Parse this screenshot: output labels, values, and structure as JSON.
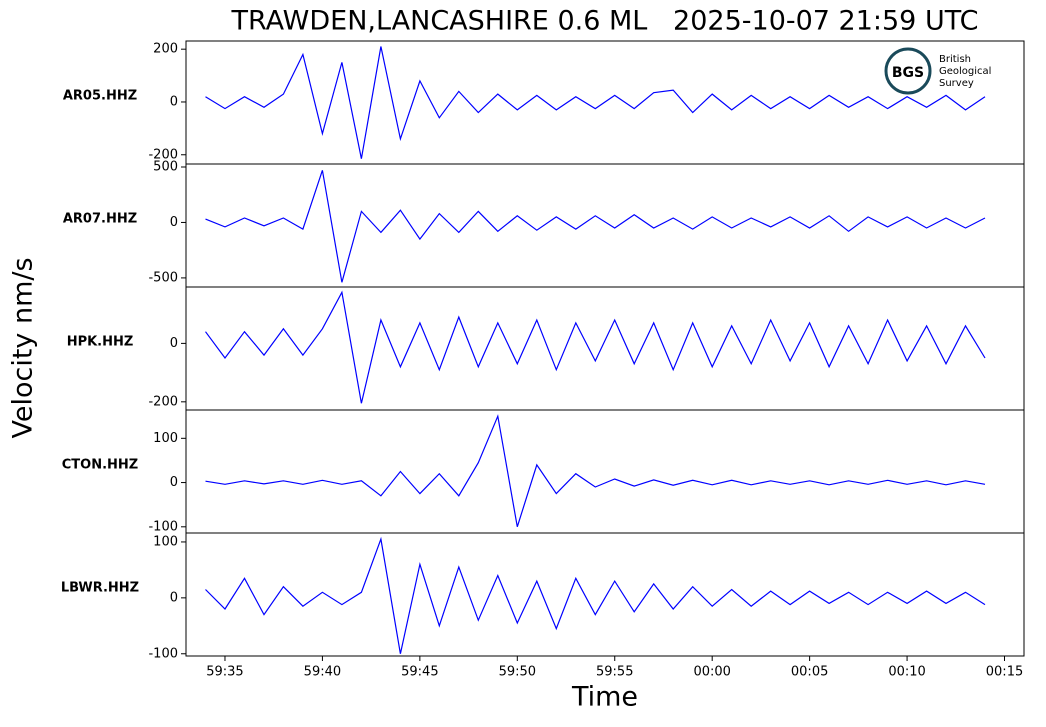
{
  "chart_data": {
    "type": "line",
    "title": "TRAWDEN,LANCASHIRE 0.6 ML   2025-10-07 21:59 UTC",
    "xlabel": "Time",
    "ylabel": "Velocity nm/s",
    "color": "#0000ff",
    "x": [
      "59:34",
      "59:35",
      "59:36",
      "59:37",
      "59:38",
      "59:39",
      "59:40",
      "59:41",
      "59:42",
      "59:43",
      "59:44",
      "59:45",
      "59:46",
      "59:47",
      "59:48",
      "59:49",
      "59:50",
      "59:51",
      "59:52",
      "59:53",
      "59:54",
      "59:55",
      "59:56",
      "59:57",
      "59:58",
      "59:59",
      "00:00",
      "00:01",
      "00:02",
      "00:03",
      "00:04",
      "00:05",
      "00:06",
      "00:07",
      "00:08",
      "00:09",
      "00:10",
      "00:11",
      "00:12",
      "00:13",
      "00:14"
    ],
    "xlim": [
      "59:33",
      "00:16"
    ],
    "xticks": [
      "59:35",
      "59:40",
      "59:45",
      "59:50",
      "59:55",
      "00:00",
      "00:05",
      "00:10",
      "00:15"
    ],
    "series": [
      {
        "name": "AR05.HHZ",
        "ylim": [
          -235,
          231
        ],
        "yticks": [
          -200,
          0,
          200
        ],
        "values": [
          20,
          -25,
          20,
          -20,
          30,
          180,
          -120,
          150,
          -215,
          210,
          -140,
          80,
          -60,
          40,
          -40,
          30,
          -30,
          25,
          -30,
          20,
          -25,
          25,
          -25,
          35,
          45,
          -40,
          30,
          -30,
          25,
          -25,
          20,
          -25,
          25,
          -20,
          20,
          -25,
          20,
          -20,
          25,
          -30,
          20
        ]
      },
      {
        "name": "AR07.HHZ",
        "ylim": [
          -582,
          527
        ],
        "yticks": [
          -500,
          0,
          500
        ],
        "values": [
          30,
          -40,
          40,
          -30,
          40,
          -60,
          470,
          -540,
          100,
          -90,
          110,
          -150,
          80,
          -90,
          100,
          -80,
          60,
          -70,
          50,
          -60,
          60,
          -50,
          70,
          -50,
          40,
          -60,
          50,
          -50,
          40,
          -40,
          50,
          -50,
          60,
          -80,
          50,
          -40,
          50,
          -50,
          40,
          -50,
          40
        ]
      },
      {
        "name": "HPK.HHZ",
        "ylim": [
          -228,
          193
        ],
        "yticks": [
          -200,
          0
        ],
        "values": [
          40,
          -50,
          40,
          -40,
          50,
          -40,
          50,
          175,
          -205,
          80,
          -80,
          70,
          -90,
          90,
          -80,
          70,
          -70,
          80,
          -90,
          70,
          -60,
          80,
          -70,
          70,
          -90,
          70,
          -80,
          60,
          -70,
          80,
          -60,
          70,
          -80,
          60,
          -70,
          80,
          -60,
          60,
          -70,
          60,
          -50
        ]
      },
      {
        "name": "CTON.HHZ",
        "ylim": [
          -114,
          164
        ],
        "yticks": [
          -100,
          0,
          100
        ],
        "values": [
          3,
          -4,
          4,
          -3,
          4,
          -4,
          5,
          -4,
          4,
          -30,
          25,
          -25,
          20,
          -30,
          45,
          150,
          -100,
          40,
          -25,
          20,
          -10,
          8,
          -8,
          6,
          -6,
          5,
          -5,
          5,
          -5,
          4,
          -4,
          4,
          -5,
          4,
          -4,
          5,
          -4,
          4,
          -5,
          4,
          -4
        ]
      },
      {
        "name": "LBWR.HHZ",
        "ylim": [
          -104,
          116
        ],
        "yticks": [
          -100,
          0,
          100
        ],
        "values": [
          15,
          -20,
          35,
          -30,
          20,
          -15,
          10,
          -12,
          10,
          105,
          -100,
          60,
          -50,
          55,
          -40,
          40,
          -45,
          30,
          -55,
          35,
          -30,
          30,
          -25,
          25,
          -20,
          20,
          -15,
          15,
          -15,
          12,
          -12,
          12,
          -10,
          10,
          -12,
          10,
          -10,
          12,
          -10,
          10,
          -12
        ]
      }
    ]
  },
  "logo": {
    "badge": "BGS",
    "lines": [
      "British",
      "Geological",
      "Survey"
    ]
  }
}
